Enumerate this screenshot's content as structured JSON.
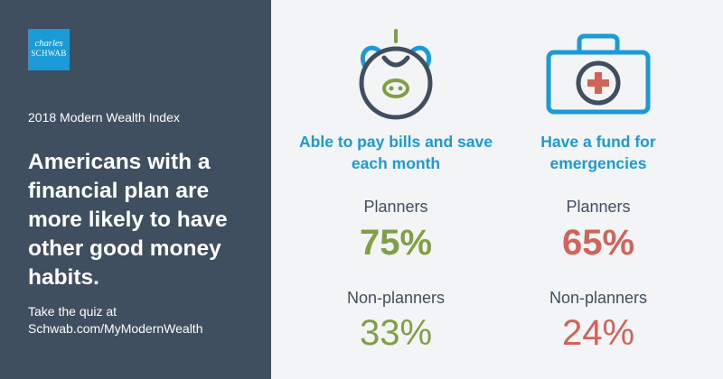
{
  "brand": {
    "logo_line1": "charles",
    "logo_line2": "SCHWAB",
    "color": "#1a9ad6"
  },
  "left_panel": {
    "index_label": "2018 Modern Wealth Index",
    "headline": "Americans with a financial plan are more likely to have other good money habits.",
    "cta_label": "Take the quiz at",
    "cta_url": "Schwab.com/MyModernWealth",
    "background": "#3f4f5f"
  },
  "columns": [
    {
      "icon": "piggy-bank-icon",
      "title": "Able to pay bills and save each month",
      "planners_label": "Planners",
      "planners_value": "75%",
      "nonplanners_label": "Non-planners",
      "nonplanners_value": "33%",
      "stat_color": "#7fa044"
    },
    {
      "icon": "first-aid-kit-icon",
      "title": "Have a fund for emergencies",
      "planners_label": "Planners",
      "planners_value": "65%",
      "nonplanners_label": "Non-planners",
      "nonplanners_value": "24%",
      "stat_color": "#d0645a"
    }
  ],
  "colors": {
    "title_blue": "#1a9ad6",
    "dark_slate": "#3f4f5f",
    "green": "#7fa044",
    "red": "#d0645a"
  }
}
